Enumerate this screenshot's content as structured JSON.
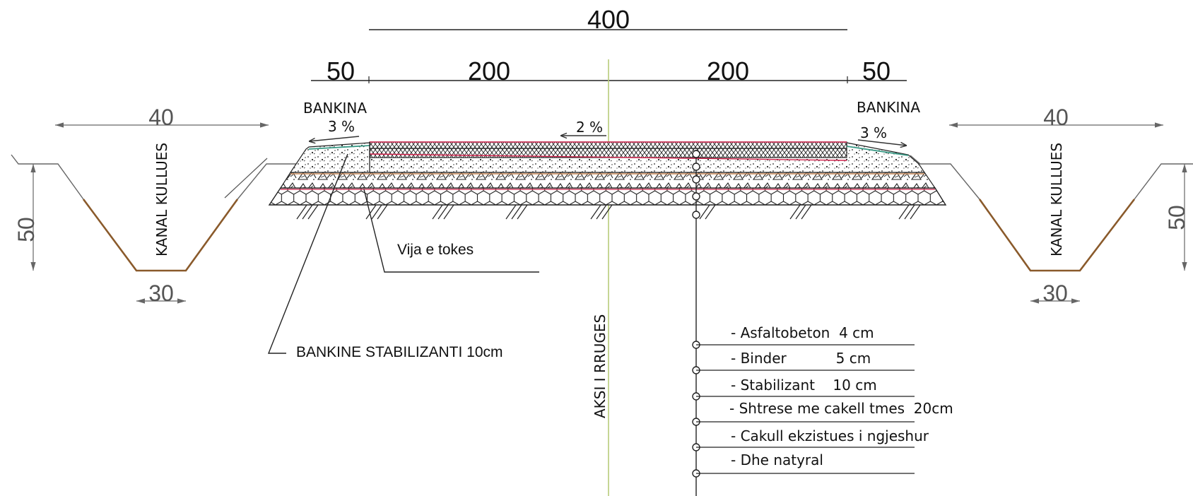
{
  "dimensions": {
    "total": "400",
    "left_shoulder": "50",
    "left_lane": "200",
    "right_lane": "200",
    "right_shoulder": "50",
    "ditch_top_width": "40",
    "ditch_depth": "50",
    "ditch_bottom_width": "30"
  },
  "labels": {
    "shoulder_left": "BANKINA",
    "shoulder_right": "BANKINA",
    "slope_shoulder_left": "3 %",
    "slope_road": "2 %",
    "slope_shoulder_right": "3 %",
    "ditch_left": "KANAL KULLUES",
    "ditch_right": "KANAL KULLUES",
    "ground_line": "Vija e tokes",
    "shoulder_material": "BANKINE STABILIZANTI 10cm",
    "road_axis": "AKSI I RRUGES"
  },
  "layers": [
    "- Asfaltobeton  4 cm",
    "- Binder           5 cm",
    "- Stabilizant    10 cm",
    "- Shtrese me cakell tmes  20cm",
    "- Cakull ekzistues i ngjeshur",
    "- Dhe natyral"
  ],
  "colors": {
    "asphalt_line": "#d0204a",
    "axis_line": "#b8cc7a",
    "ditch_line": "#8a5a2b",
    "shoulder_top": "#3a9a86",
    "line": "#222222"
  }
}
